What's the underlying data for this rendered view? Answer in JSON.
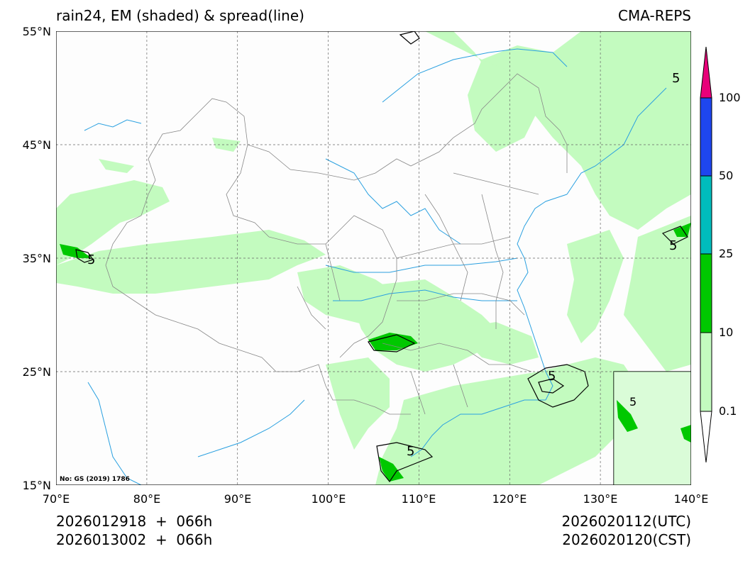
{
  "title": {
    "left": "rain24, EM (shaded) & spread(line)",
    "right": "CMA-REPS"
  },
  "axes": {
    "lat_labels": [
      "55°N",
      "45°N",
      "35°N",
      "25°N",
      "15°N"
    ],
    "lon_labels": [
      "70°E",
      "80°E",
      "90°E",
      "100°E",
      "110°E",
      "120°E",
      "130°E",
      "140°E"
    ],
    "lat_range": [
      15,
      55
    ],
    "lon_range": [
      70,
      140
    ]
  },
  "colorbar": {
    "labels": [
      "0.1",
      "10",
      "25",
      "50",
      "100"
    ],
    "colors": [
      "#ffffff",
      "#c3fbbf",
      "#00c800",
      "#00bcbc",
      "#1e46ee",
      "#e8007a"
    ]
  },
  "contour_label": "5",
  "note": "No: GS (2019) 1786",
  "times": {
    "init_utc": "2026012918  +  066h",
    "init_cst": "2026013002  +  066h",
    "valid_utc": "2026020112(UTC)",
    "valid_cst": "2026020120(CST)"
  }
}
